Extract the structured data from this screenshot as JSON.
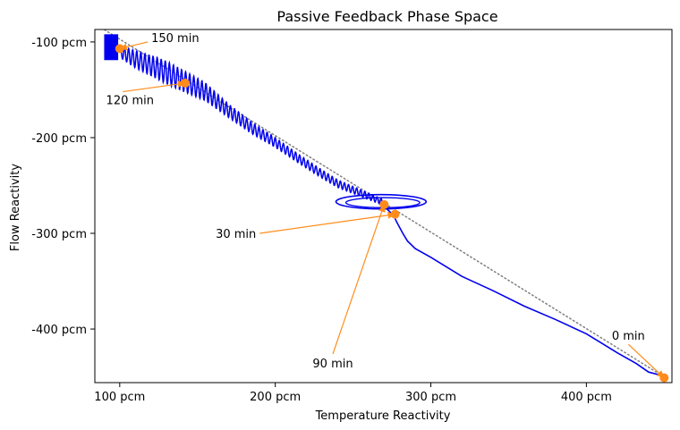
{
  "chart_data": {
    "type": "line",
    "title": "Passive Feedback Phase Space",
    "xlabel": "Temperature Reactivity",
    "ylabel": "Flow Reactivity",
    "xlim": [
      84,
      455
    ],
    "ylim": [
      -456,
      -87
    ],
    "x_ticks": [
      {
        "value": 100,
        "label": "100 pcm"
      },
      {
        "value": 200,
        "label": "200 pcm"
      },
      {
        "value": 300,
        "label": "300 pcm"
      },
      {
        "value": 400,
        "label": "400 pcm"
      }
    ],
    "y_ticks": [
      {
        "value": -100,
        "label": "-100 pcm"
      },
      {
        "value": -200,
        "label": "-200 pcm"
      },
      {
        "value": -300,
        "label": "-300 pcm"
      },
      {
        "value": -400,
        "label": "-400 pcm"
      }
    ],
    "colors": {
      "trajectory": "#0000ee",
      "reference": "#7f7f7f",
      "marker": "#ff8c1a"
    },
    "reference_line": {
      "style": "dotted",
      "points": [
        [
          88,
          -85
        ],
        [
          452,
          -452
        ]
      ]
    },
    "trajectory_path": [
      [
        450,
        -451
      ],
      [
        447,
        -448
      ],
      [
        440,
        -445
      ],
      [
        432,
        -436
      ],
      [
        420,
        -425
      ],
      [
        400,
        -405
      ],
      [
        380,
        -390
      ],
      [
        360,
        -376
      ],
      [
        340,
        -360
      ],
      [
        320,
        -345
      ],
      [
        300,
        -325
      ],
      [
        290,
        -316
      ],
      [
        285,
        -308
      ],
      [
        282,
        -300
      ],
      [
        278,
        -288
      ],
      [
        276,
        -281
      ],
      [
        270,
        -272
      ]
    ],
    "loop": {
      "center": [
        268,
        -267
      ],
      "rx": 29,
      "ry": 7.5
    },
    "oscillation": {
      "centerline": [
        [
          270,
          -268
        ],
        [
          255,
          -258
        ],
        [
          240,
          -248
        ],
        [
          228,
          -236
        ],
        [
          215,
          -222
        ],
        [
          200,
          -205
        ],
        [
          185,
          -190
        ],
        [
          170,
          -172
        ],
        [
          155,
          -152
        ],
        [
          140,
          -140
        ],
        [
          125,
          -128
        ],
        [
          110,
          -118
        ],
        [
          100,
          -110
        ]
      ],
      "amplitude": [
        [
          270,
          3
        ],
        [
          240,
          4
        ],
        [
          200,
          5
        ],
        [
          170,
          7
        ],
        [
          150,
          10
        ],
        [
          130,
          12
        ],
        [
          110,
          9
        ],
        [
          100,
          6
        ]
      ]
    },
    "band": {
      "x_range": [
        90,
        99
      ],
      "y_range": [
        -119,
        -92
      ]
    },
    "markers": [
      {
        "label": "0 min",
        "x": 450,
        "y": -451,
        "label_x": 427,
        "label_y": -416
      },
      {
        "label": "30 min",
        "x": 277,
        "y": -280,
        "label_x": 190,
        "label_y": -300
      },
      {
        "label": "90 min",
        "x": 270,
        "y": -270,
        "label_x": 237,
        "label_y": -426
      },
      {
        "label": "120 min",
        "x": 142,
        "y": -143,
        "label_x": 102,
        "label_y": -152
      },
      {
        "label": "150 min",
        "x": 100,
        "y": -107,
        "label_x": 118,
        "label_y": -100
      }
    ]
  }
}
